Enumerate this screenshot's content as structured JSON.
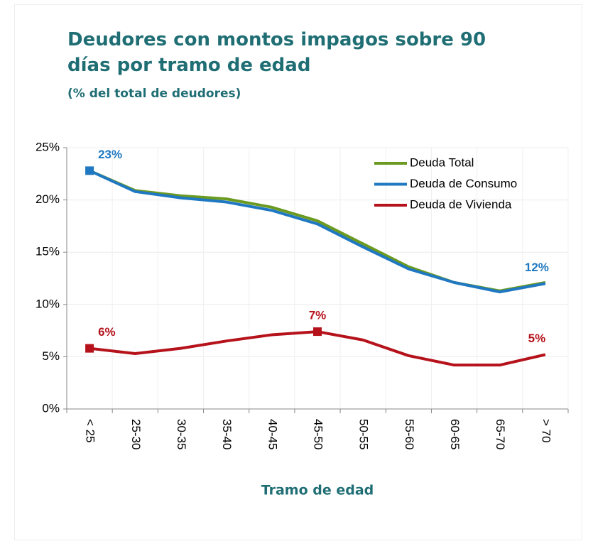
{
  "chart_data": {
    "type": "line",
    "title": "Deudores con montos impagos sobre 90 días por tramo de edad",
    "subtitle": "(% del total de deudores)",
    "x_label": "Tramo de edad",
    "categories": [
      "< 25",
      "25-30",
      "30-35",
      "35-40",
      "40-45",
      "45-50",
      "50-55",
      "55-60",
      "60-65",
      "65-70",
      "> 70"
    ],
    "series": [
      {
        "name": "Deuda Total",
        "color": "#6a9a1f",
        "values": [
          22.8,
          20.9,
          20.4,
          20.1,
          19.3,
          18.0,
          15.8,
          13.6,
          12.1,
          11.3,
          12.1
        ],
        "value_labels": [
          null,
          null,
          null,
          null,
          null,
          null,
          null,
          null,
          null,
          null,
          null
        ]
      },
      {
        "name": "Deuda de Consumo",
        "color": "#1f78c1",
        "values": [
          22.8,
          20.8,
          20.2,
          19.8,
          19.0,
          17.7,
          15.5,
          13.4,
          12.1,
          11.2,
          12.0
        ],
        "value_labels": [
          "23%",
          null,
          null,
          null,
          null,
          null,
          null,
          null,
          null,
          null,
          "12%"
        ]
      },
      {
        "name": "Deuda de Vivienda",
        "color": "#b5121b",
        "values": [
          5.8,
          5.3,
          5.8,
          6.5,
          7.1,
          7.4,
          6.6,
          5.1,
          4.2,
          4.2,
          5.2
        ],
        "value_labels": [
          "6%",
          null,
          null,
          null,
          null,
          "7%",
          null,
          null,
          null,
          null,
          "5%"
        ]
      }
    ],
    "ylim": [
      0,
      25
    ],
    "yticks": [
      {
        "value": 0,
        "label": "0%"
      },
      {
        "value": 5,
        "label": "5%"
      },
      {
        "value": 10,
        "label": "10%"
      },
      {
        "value": 15,
        "label": "15%"
      },
      {
        "value": 20,
        "label": "20%"
      },
      {
        "value": 25,
        "label": "25%"
      }
    ],
    "grid": true,
    "legend": "top-right"
  }
}
